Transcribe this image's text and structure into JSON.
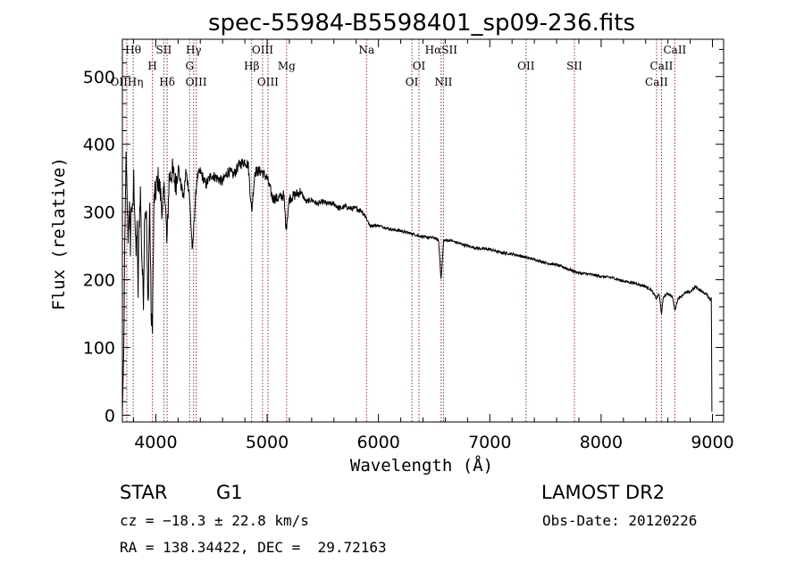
{
  "chart_data": {
    "type": "line",
    "title": "spec-55984-B5598401_sp09-236.fits",
    "xlabel": "Wavelength (Å)",
    "ylabel": "Flux (relative)",
    "xlim": [
      3700,
      9100
    ],
    "ylim": [
      -10,
      555
    ],
    "x_ticks": [
      4000,
      5000,
      6000,
      7000,
      8000,
      9000
    ],
    "y_ticks": [
      0,
      100,
      200,
      300,
      400,
      500
    ],
    "x_tick_labels": [
      "4000",
      "5000",
      "6000",
      "7000",
      "8000",
      "9000"
    ],
    "y_tick_labels": [
      "0",
      "100",
      "200",
      "300",
      "400",
      "500"
    ],
    "spectrum_knots": [
      [
        3700,
        5
      ],
      [
        3712,
        90
      ],
      [
        3722,
        250
      ],
      [
        3732,
        380
      ],
      [
        3742,
        320
      ],
      [
        3752,
        260
      ],
      [
        3762,
        310
      ],
      [
        3772,
        250
      ],
      [
        3782,
        320
      ],
      [
        3792,
        290
      ],
      [
        3802,
        350
      ],
      [
        3812,
        300
      ],
      [
        3822,
        230
      ],
      [
        3832,
        290
      ],
      [
        3840,
        170
      ],
      [
        3850,
        280
      ],
      [
        3862,
        330
      ],
      [
        3875,
        230
      ],
      [
        3890,
        170
      ],
      [
        3900,
        310
      ],
      [
        3915,
        300
      ],
      [
        3930,
        150
      ],
      [
        3945,
        320
      ],
      [
        3960,
        130
      ],
      [
        3970,
        140
      ],
      [
        3985,
        320
      ],
      [
        4000,
        330
      ],
      [
        4020,
        350
      ],
      [
        4040,
        330
      ],
      [
        4060,
        300
      ],
      [
        4080,
        340
      ],
      [
        4100,
        250
      ],
      [
        4120,
        350
      ],
      [
        4150,
        360
      ],
      [
        4180,
        340
      ],
      [
        4200,
        370
      ],
      [
        4220,
        345
      ],
      [
        4250,
        320
      ],
      [
        4270,
        360
      ],
      [
        4300,
        330
      ],
      [
        4330,
        240
      ],
      [
        4345,
        290
      ],
      [
        4370,
        350
      ],
      [
        4400,
        360
      ],
      [
        4450,
        340
      ],
      [
        4500,
        355
      ],
      [
        4550,
        350
      ],
      [
        4600,
        345
      ],
      [
        4650,
        360
      ],
      [
        4700,
        355
      ],
      [
        4750,
        370
      ],
      [
        4800,
        375
      ],
      [
        4830,
        370
      ],
      [
        4861,
        300
      ],
      [
        4890,
        360
      ],
      [
        4950,
        360
      ],
      [
        5000,
        350
      ],
      [
        5050,
        320
      ],
      [
        5100,
        320
      ],
      [
        5150,
        325
      ],
      [
        5170,
        275
      ],
      [
        5200,
        320
      ],
      [
        5250,
        325
      ],
      [
        5300,
        330
      ],
      [
        5350,
        315
      ],
      [
        5400,
        318
      ],
      [
        5450,
        312
      ],
      [
        5500,
        315
      ],
      [
        5550,
        312
      ],
      [
        5600,
        312
      ],
      [
        5650,
        305
      ],
      [
        5700,
        308
      ],
      [
        5750,
        305
      ],
      [
        5800,
        305
      ],
      [
        5850,
        302
      ],
      [
        5890,
        292
      ],
      [
        5920,
        280
      ],
      [
        6000,
        280
      ],
      [
        6100,
        275
      ],
      [
        6200,
        272
      ],
      [
        6300,
        268
      ],
      [
        6400,
        263
      ],
      [
        6500,
        262
      ],
      [
        6540,
        258
      ],
      [
        6563,
        200
      ],
      [
        6585,
        258
      ],
      [
        6650,
        258
      ],
      [
        6700,
        255
      ],
      [
        6800,
        250
      ],
      [
        6900,
        246
      ],
      [
        7000,
        245
      ],
      [
        7100,
        240
      ],
      [
        7200,
        238
      ],
      [
        7300,
        234
      ],
      [
        7400,
        230
      ],
      [
        7500,
        225
      ],
      [
        7600,
        222
      ],
      [
        7700,
        216
      ],
      [
        7800,
        210
      ],
      [
        7900,
        208
      ],
      [
        8000,
        205
      ],
      [
        8100,
        203
      ],
      [
        8200,
        198
      ],
      [
        8300,
        195
      ],
      [
        8400,
        190
      ],
      [
        8450,
        185
      ],
      [
        8498,
        172
      ],
      [
        8520,
        180
      ],
      [
        8542,
        150
      ],
      [
        8560,
        175
      ],
      [
        8600,
        180
      ],
      [
        8640,
        175
      ],
      [
        8662,
        155
      ],
      [
        8690,
        172
      ],
      [
        8750,
        180
      ],
      [
        8800,
        182
      ],
      [
        8850,
        190
      ],
      [
        8900,
        183
      ],
      [
        8950,
        178
      ],
      [
        8985,
        170
      ],
      [
        8990,
        175
      ],
      [
        8992,
        120
      ],
      [
        8995,
        5
      ]
    ],
    "emission_lines": [
      {
        "label": "Hθ",
        "x": 3797,
        "row": 0
      },
      {
        "label": "SII",
        "x": 4072,
        "row": 0
      },
      {
        "label": "Hγ",
        "x": 4340,
        "row": 0
      },
      {
        "label": "OIII",
        "x": 4959,
        "row": 0
      },
      {
        "label": "Na",
        "x": 5893,
        "row": 0
      },
      {
        "label": "HαSII",
        "x": 6563,
        "row": 0
      },
      {
        "label": "CaII",
        "x": 8662,
        "row": 0
      },
      {
        "label": "H",
        "x": 3970,
        "row": 1
      },
      {
        "label": "G",
        "x": 4304,
        "row": 1
      },
      {
        "label": "Hβ",
        "x": 4861,
        "row": 1
      },
      {
        "label": "Mg",
        "x": 5175,
        "row": 1
      },
      {
        "label": "OI",
        "x": 6364,
        "row": 1
      },
      {
        "label": "OII",
        "x": 7325,
        "row": 1
      },
      {
        "label": "SII",
        "x": 7760,
        "row": 1
      },
      {
        "label": "CaII",
        "x": 8542,
        "row": 1
      },
      {
        "label": "OIIHη",
        "x": 3740,
        "row": 2
      },
      {
        "label": "Hδ",
        "x": 4102,
        "row": 2
      },
      {
        "label": "OIII",
        "x": 4363,
        "row": 2
      },
      {
        "label": "OIII",
        "x": 5007,
        "row": 2
      },
      {
        "label": "OI",
        "x": 6300,
        "row": 2
      },
      {
        "label": "NII",
        "x": 6584,
        "row": 2
      },
      {
        "label": "CaII",
        "x": 8498,
        "row": 2
      }
    ],
    "line_color": "#000000",
    "marker_color": "#a52a2a"
  },
  "info": {
    "object_class": "STAR",
    "subclass": "G1",
    "survey": "LAMOST DR2",
    "redshift_line": "cz = −18.3 ± 22.8 km/s",
    "obs_date_line": "Obs-Date: 20120226",
    "coords_line": "RA = 138.34422, DEC =  29.72163"
  }
}
